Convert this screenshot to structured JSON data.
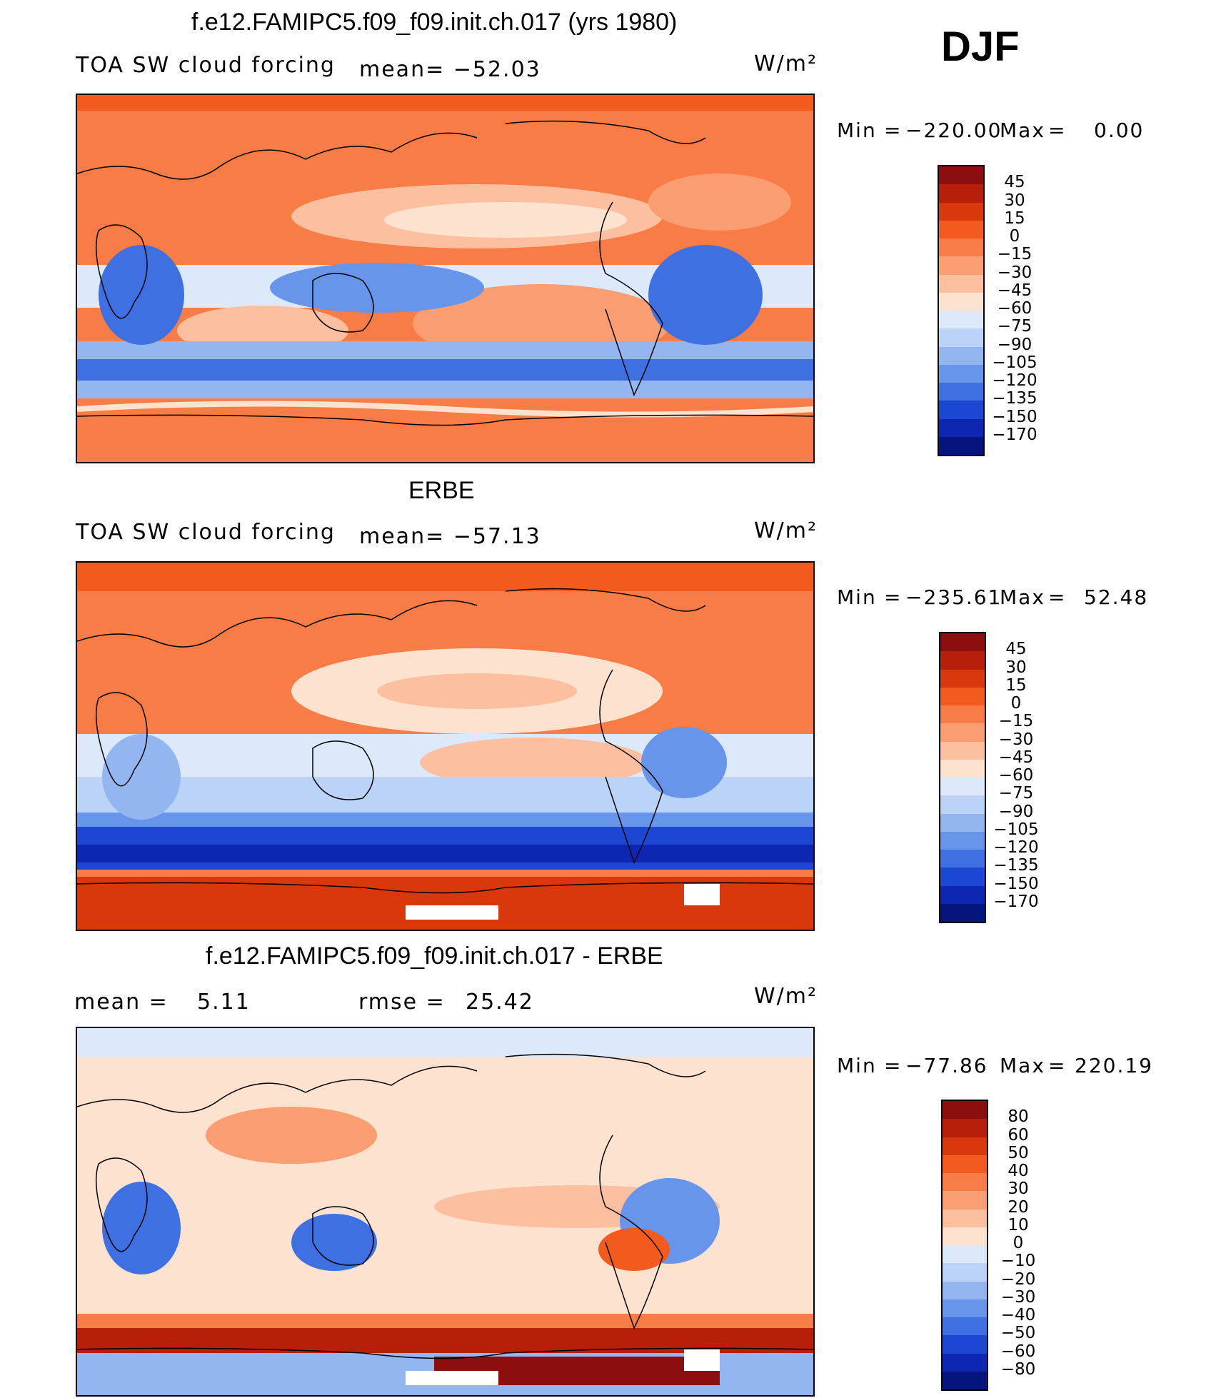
{
  "season": "DJF",
  "units": "W/m²",
  "panels": [
    {
      "id": "model",
      "title": "f.e12.FAMIPC5.f09_f09.init.ch.017 (yrs 1980)",
      "left_label": "TOA SW cloud forcing",
      "center_label": "mean= −52.03",
      "right_label": "W/m²",
      "min_label": "Min",
      "min_value": "−220.00",
      "max_label": "Max",
      "max_value": "0.00",
      "colorbar_ticks": [
        "45",
        "30",
        "15",
        "0",
        "−15",
        "−30",
        "−45",
        "−60",
        "−75",
        "−90",
        "−105",
        "−120",
        "−135",
        "−150",
        "−170"
      ],
      "colorbar_colors": [
        "#8c0e0e",
        "#b81f0a",
        "#d9380d",
        "#f25a1e",
        "#f77c45",
        "#fa9d71",
        "#fcc0a0",
        "#fde2cf",
        "#dce9fb",
        "#bcd3f8",
        "#93b6f1",
        "#6795ea",
        "#3e70e1",
        "#1c47d3",
        "#0d27b3",
        "#06147e"
      ]
    },
    {
      "id": "obs",
      "title": "ERBE",
      "left_label": "TOA SW cloud forcing",
      "center_label": "mean= −57.13",
      "right_label": "W/m²",
      "min_label": "Min",
      "min_value": "−235.61",
      "max_label": "Max",
      "max_value": "52.48",
      "colorbar_ticks": [
        "45",
        "30",
        "15",
        "0",
        "−15",
        "−30",
        "−45",
        "−60",
        "−75",
        "−90",
        "−105",
        "−120",
        "−135",
        "−150",
        "−170"
      ],
      "colorbar_colors": [
        "#8c0e0e",
        "#b81f0a",
        "#d9380d",
        "#f25a1e",
        "#f77c45",
        "#fa9d71",
        "#fcc0a0",
        "#fde2cf",
        "#dce9fb",
        "#bcd3f8",
        "#93b6f1",
        "#6795ea",
        "#3e70e1",
        "#1c47d3",
        "#0d27b3",
        "#06147e"
      ]
    },
    {
      "id": "diff",
      "title": "f.e12.FAMIPC5.f09_f09.init.ch.017 - ERBE",
      "left_label": "mean =",
      "left_value": "5.11",
      "center_label": "rmse =",
      "center_value": "25.42",
      "right_label": "W/m²",
      "min_label": "Min",
      "min_value": "−77.86",
      "max_label": "Max",
      "max_value": "220.19",
      "colorbar_ticks": [
        "80",
        "60",
        "50",
        "40",
        "30",
        "20",
        "10",
        "0",
        "−10",
        "−20",
        "−30",
        "−40",
        "−50",
        "−60",
        "−80"
      ],
      "colorbar_colors": [
        "#8c0e0e",
        "#b81f0a",
        "#d9380d",
        "#f25a1e",
        "#f77c45",
        "#fa9d71",
        "#fcc0a0",
        "#fde2cf",
        "#dce9fb",
        "#bcd3f8",
        "#93b6f1",
        "#6795ea",
        "#3e70e1",
        "#1c47d3",
        "#0d27b3",
        "#06147e"
      ]
    }
  ]
}
